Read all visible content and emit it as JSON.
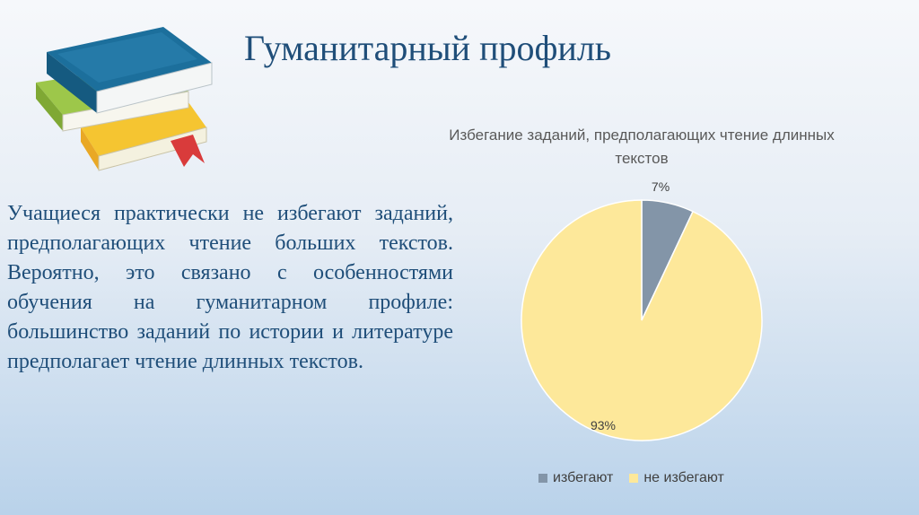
{
  "header": {
    "title": "Гуманитарный профиль"
  },
  "body": {
    "paragraph": "Учащиеся практически не избегают заданий, предполагающих чтение больших текстов. Вероятно, это связано с особенностями обучения на гуманитарном профиле: большинство заданий по истории и литературе предполагает чтение длинных текстов."
  },
  "illustration": {
    "icon": "books-icon",
    "colors": [
      "#1c6f9c",
      "#9dc74a",
      "#f1c232",
      "#d93b3b"
    ]
  },
  "chart_data": {
    "type": "pie",
    "title": "Избегание заданий, предполагающих чтение длинных текстов",
    "categories": [
      "избегают",
      "не избегают"
    ],
    "values": [
      7,
      93
    ],
    "data_labels": [
      "7%",
      "93%"
    ],
    "colors": [
      "#8395a8",
      "#fde89a"
    ],
    "legend_position": "bottom"
  }
}
